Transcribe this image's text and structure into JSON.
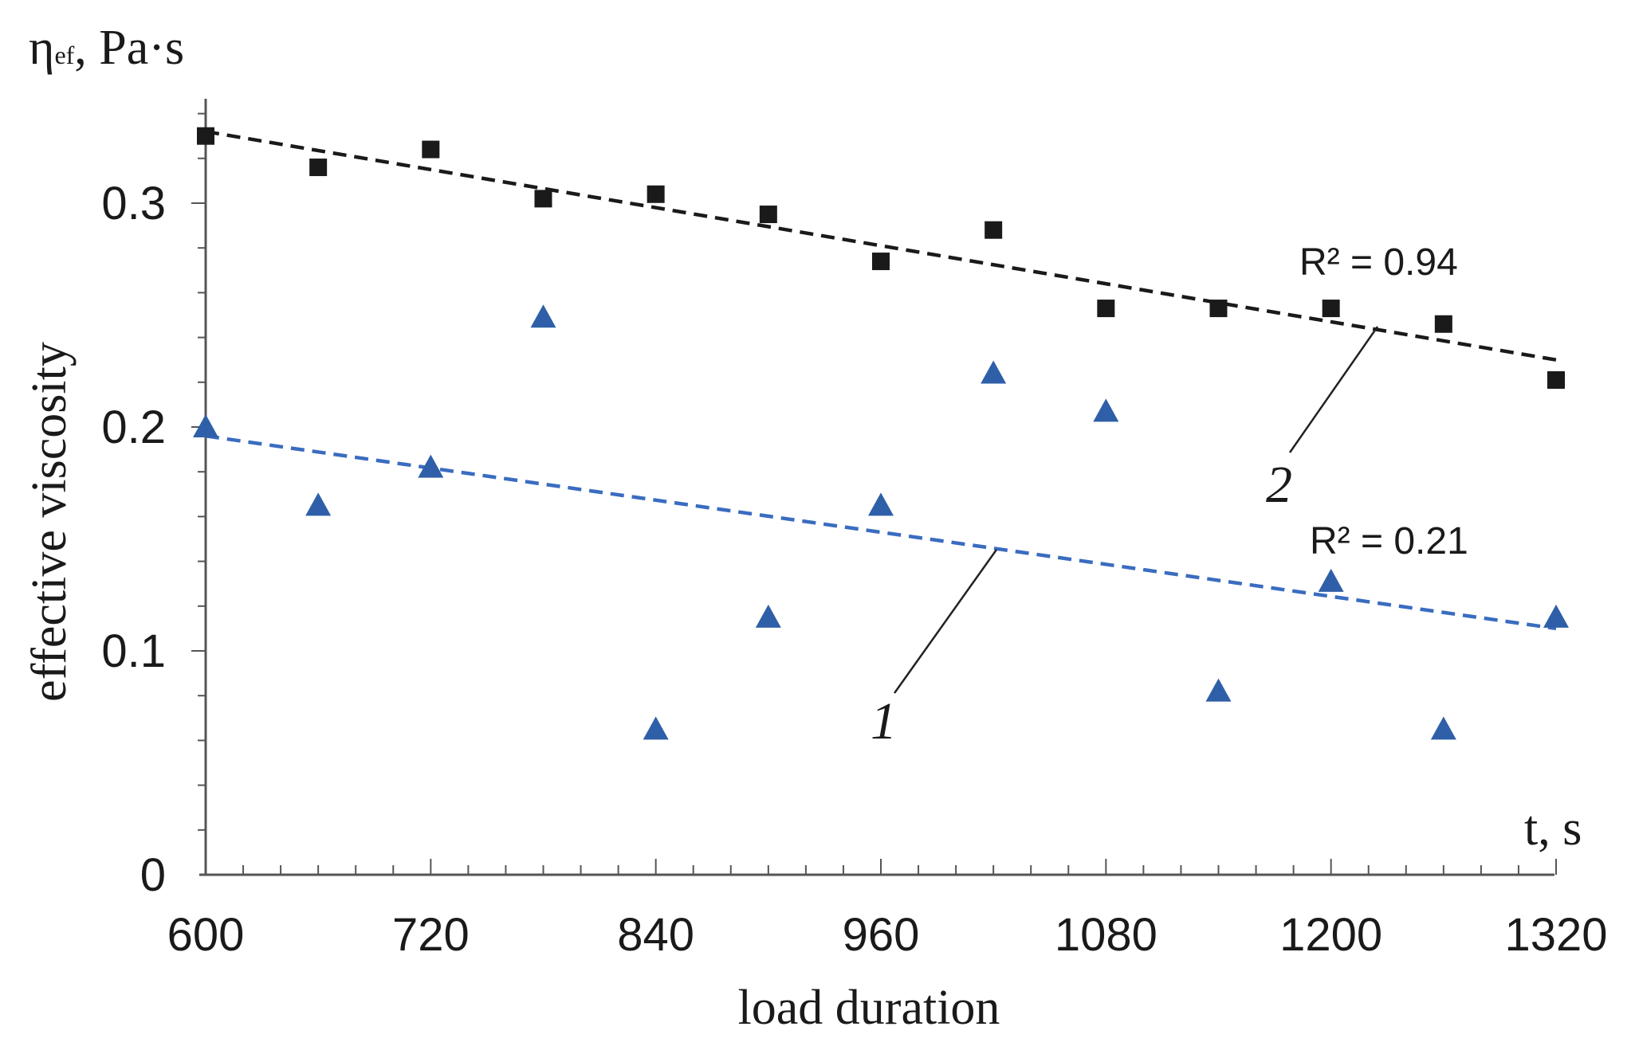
{
  "chart_data": {
    "type": "scatter",
    "title": "",
    "xlabel": "load duration",
    "ylabel": "effective viscosity",
    "x_unit_label": "t, s",
    "y_unit_label": {
      "symbol": "η",
      "subscript": "ef",
      "unit": ", Pa·s"
    },
    "xlim": [
      600,
      1320
    ],
    "ylim": [
      0,
      0.35
    ],
    "x_ticks": [
      600,
      720,
      840,
      960,
      1080,
      1200,
      1320
    ],
    "x_tick_labels": [
      "600",
      "720",
      "840",
      "960",
      "1080",
      "1200",
      "1320"
    ],
    "y_ticks": [
      0,
      0.1,
      0.2,
      0.3
    ],
    "y_tick_labels": [
      "0",
      "0.1",
      "0.2",
      "0.3"
    ],
    "grid": false,
    "series": [
      {
        "name": "1",
        "marker": "triangle",
        "color": "#2f5fa8",
        "x": [
          600,
          660,
          720,
          780,
          840,
          900,
          960,
          1020,
          1080,
          1140,
          1200,
          1260,
          1320
        ],
        "y": [
          0.2,
          0.165,
          0.182,
          0.249,
          0.065,
          0.115,
          0.165,
          0.224,
          0.207,
          0.082,
          0.131,
          0.065,
          0.115
        ],
        "trendline": {
          "x": [
            600,
            1320
          ],
          "y": [
            0.196,
            0.11
          ],
          "style": "dashed",
          "color": "#3a6cc0"
        },
        "r_squared_label": "R² = 0.21",
        "curve_label": "1"
      },
      {
        "name": "2",
        "marker": "square",
        "color": "#1a1a1a",
        "x": [
          600,
          660,
          720,
          780,
          840,
          900,
          960,
          1020,
          1080,
          1140,
          1200,
          1260,
          1320
        ],
        "y": [
          0.33,
          0.316,
          0.324,
          0.302,
          0.304,
          0.295,
          0.274,
          0.288,
          0.253,
          0.253,
          0.253,
          0.246,
          0.221
        ],
        "trendline": {
          "x": [
            600,
            1320
          ],
          "y": [
            0.332,
            0.23
          ],
          "style": "dashed",
          "color": "#1a1a1a"
        },
        "r_squared_label": "R² = 0.94",
        "curve_label": "2"
      }
    ]
  }
}
